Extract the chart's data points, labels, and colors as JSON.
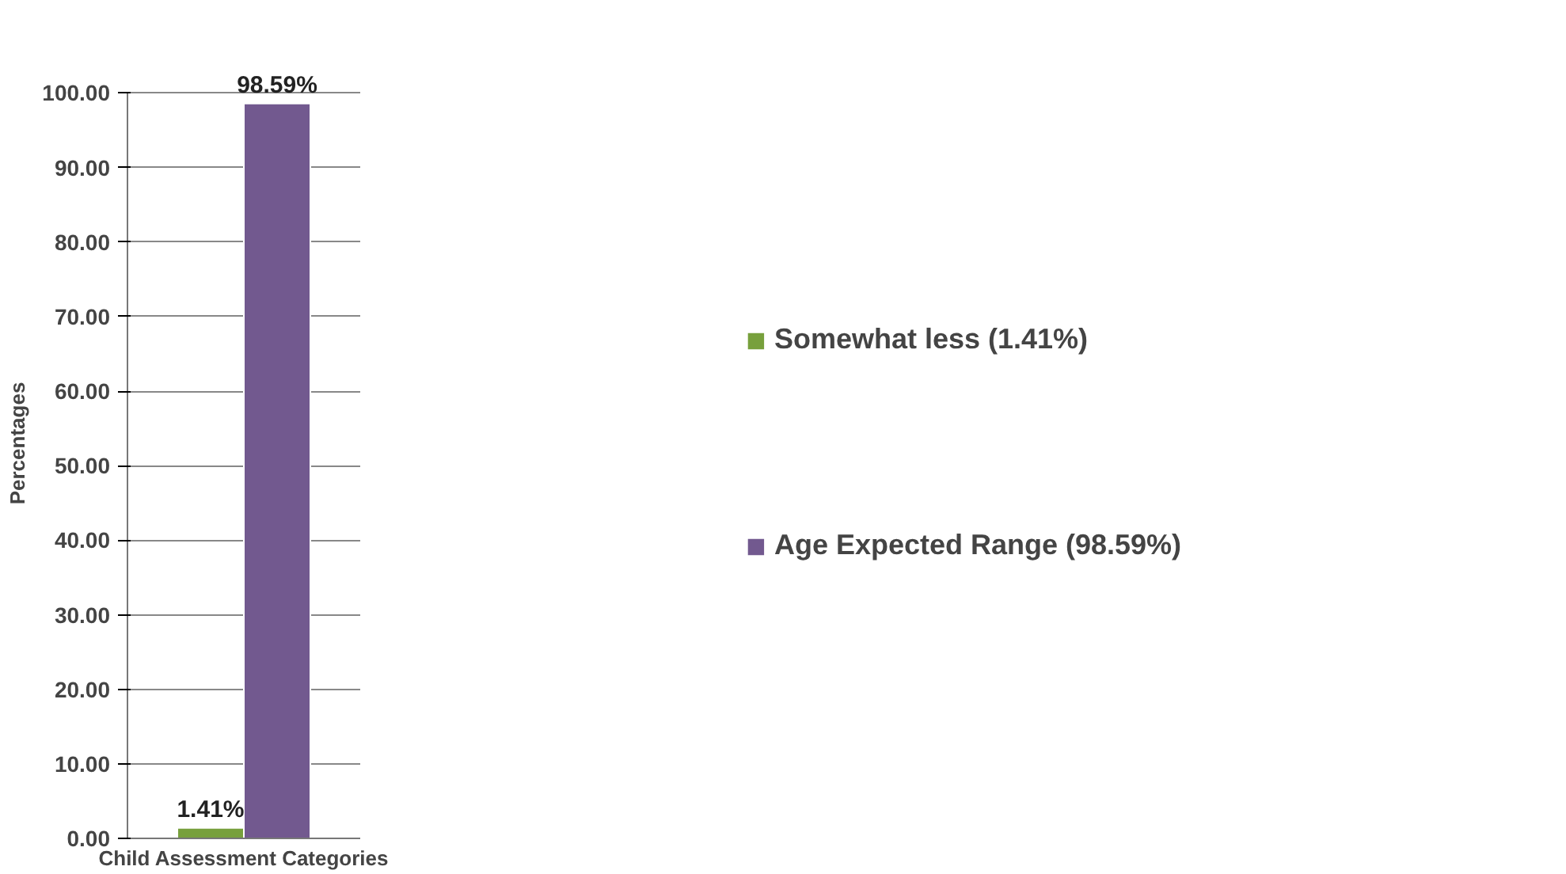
{
  "chart_data": {
    "type": "bar",
    "categories": [
      null
    ],
    "xlabel": "Child Assessment Categories",
    "ylabel": "Percentages",
    "series": [
      {
        "name": "Somewhat less (1.41%)",
        "color": "#77a03c",
        "values": [
          1.41
        ],
        "value_labels": [
          "1.41%"
        ]
      },
      {
        "name": "Age Expected Range (98.59%)",
        "color": "#72598f",
        "values": [
          98.59
        ],
        "value_labels": [
          "98.59%"
        ]
      }
    ],
    "ylim": [
      0,
      100
    ],
    "yticks": [
      {
        "value": 0,
        "label": "0.00"
      },
      {
        "value": 10,
        "label": "10.00"
      },
      {
        "value": 20,
        "label": "20.00"
      },
      {
        "value": 30,
        "label": "30.00"
      },
      {
        "value": 40,
        "label": "40.00"
      },
      {
        "value": 50,
        "label": "50.00"
      },
      {
        "value": 60,
        "label": "60.00"
      },
      {
        "value": 70,
        "label": "70.00"
      },
      {
        "value": 80,
        "label": "80.00"
      },
      {
        "value": 90,
        "label": "90.00"
      },
      {
        "value": 100,
        "label": "100.00"
      }
    ],
    "grid": "y",
    "legend": "right"
  }
}
